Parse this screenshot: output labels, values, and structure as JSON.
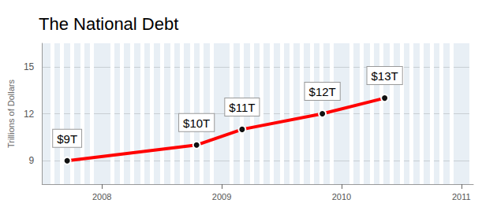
{
  "chart_data": {
    "type": "line",
    "title": "The National Debt",
    "y_label": "Trillions of Dollars",
    "x": [
      2007.71,
      2008.79,
      2009.17,
      2009.84,
      2010.36
    ],
    "values": [
      9,
      10,
      11,
      12,
      13
    ],
    "value_labels": [
      "$9T",
      "$10T",
      "$11T",
      "$12T",
      "$13T"
    ],
    "color": "#ff0000",
    "xlim": [
      2007.5,
      2011.1
    ],
    "xticks": [
      2008,
      2009,
      2010,
      2011
    ],
    "ylim": [
      7.5,
      16.5
    ],
    "yticks": [
      9,
      12,
      15
    ],
    "grid": true,
    "data_labels": true,
    "marker": "circle"
  }
}
